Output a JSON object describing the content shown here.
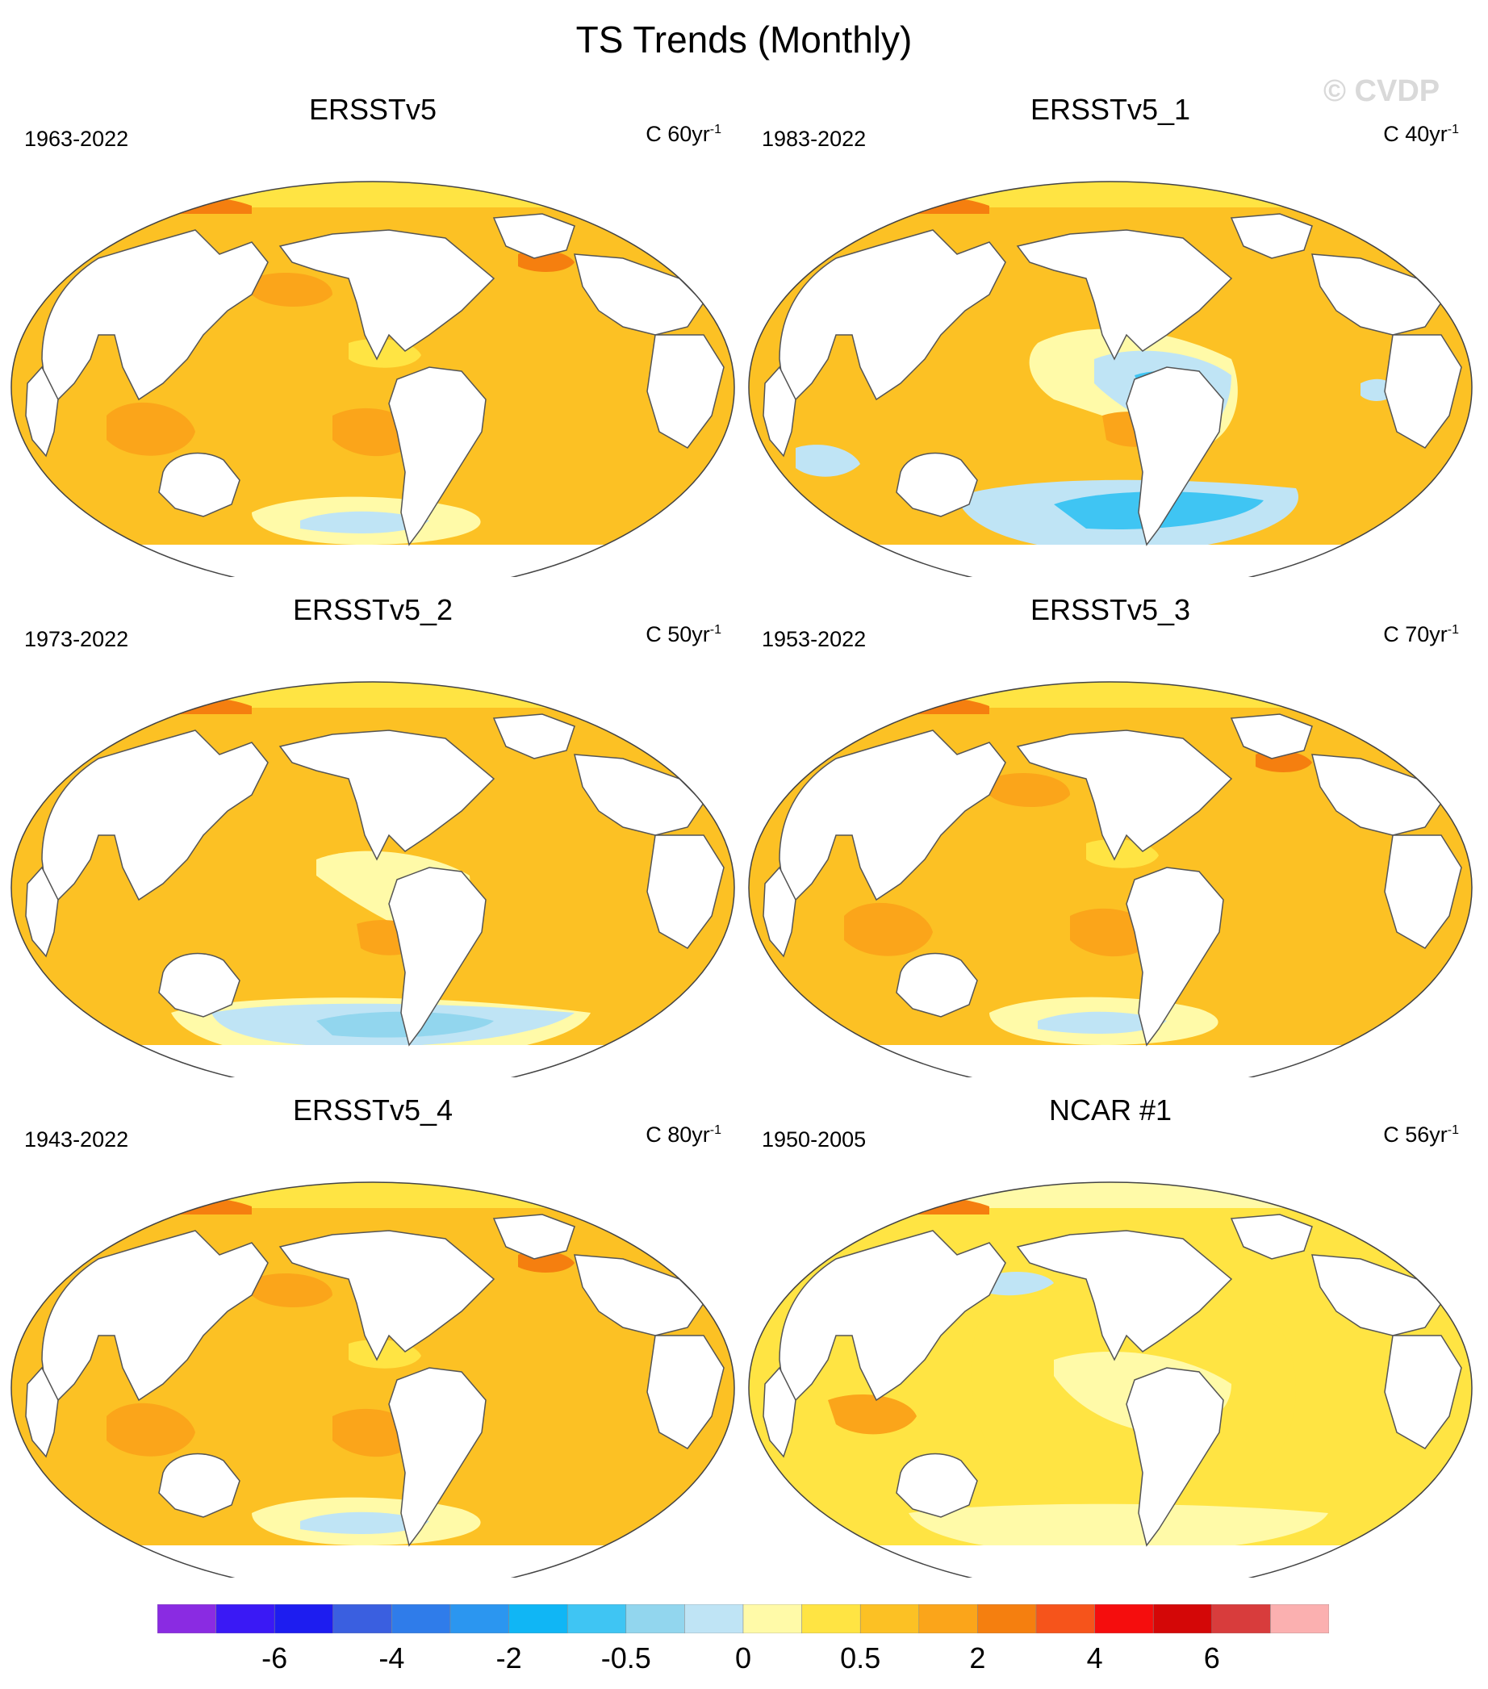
{
  "title": "TS Trends (Monthly)",
  "watermark": "© CVDP",
  "panels": [
    {
      "name": "ERSSTv5",
      "years": "1963-2022",
      "units": "C 60yr",
      "units_exp": "-1",
      "theme": "warm"
    },
    {
      "name": "ERSSTv5_1",
      "years": "1983-2022",
      "units": "C 40yr",
      "units_exp": "-1",
      "theme": "cool"
    },
    {
      "name": "ERSSTv5_2",
      "years": "1973-2022",
      "units": "C 50yr",
      "units_exp": "-1",
      "theme": "mixed"
    },
    {
      "name": "ERSSTv5_3",
      "years": "1953-2022",
      "units": "C 70yr",
      "units_exp": "-1",
      "theme": "warm"
    },
    {
      "name": "ERSSTv5_4",
      "years": "1943-2022",
      "units": "C 80yr",
      "units_exp": "-1",
      "theme": "warm"
    },
    {
      "name": "NCAR #1",
      "years": "1950-2005",
      "units": "C 56yr",
      "units_exp": "-1",
      "theme": "light"
    }
  ],
  "colorbar": {
    "colors": [
      "#8a2be2",
      "#3a19f5",
      "#1d1df0",
      "#3a5fe0",
      "#2f7cea",
      "#2b96f0",
      "#10b6f5",
      "#3fc5f3",
      "#92d6ee",
      "#bfe4f5",
      "#fffaa8",
      "#ffe443",
      "#fcc124",
      "#fba51a",
      "#f57f0f",
      "#f6541b",
      "#f50d0d",
      "#d40707",
      "#d83c3c",
      "#fbb0b0"
    ],
    "labels": [
      "-6",
      "-4",
      "-2",
      "-0.5",
      "0",
      "0.5",
      "2",
      "4",
      "6"
    ]
  },
  "colors": {
    "land": "#ffffff",
    "coast": "#555555",
    "ocean_base": "#fcc124",
    "ocean_light": "#ffe443",
    "ocean_dark": "#fba51a",
    "pale": "#fffaa8",
    "cool_light": "#bfe4f5",
    "cool": "#92d6ee",
    "cool_dark": "#3fc5f3",
    "hot": "#f57f0f"
  }
}
